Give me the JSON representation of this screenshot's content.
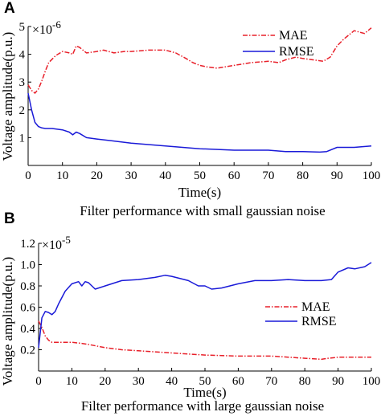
{
  "chart_data": [
    {
      "panel_label": "A",
      "type": "line",
      "caption": "Filter performance with small gaussian noise",
      "xlabel": "Time(s)",
      "ylabel": "Voltage amplitude(p.u.)",
      "y_multiplier": {
        "base": "×10",
        "exponent": "-6"
      },
      "xlim": [
        0,
        100
      ],
      "ylim": [
        0,
        5
      ],
      "xticks": [
        0,
        10,
        20,
        30,
        40,
        50,
        60,
        70,
        80,
        90,
        100
      ],
      "yticks": [
        1,
        2,
        3,
        4,
        5
      ],
      "ytick_labels": [
        "1",
        "2",
        "3",
        "4",
        "5"
      ],
      "legend_position": "top-right",
      "grid": false,
      "series": [
        {
          "name": "MAE",
          "color": "#e8202a",
          "dash": "dash-dot",
          "x": [
            0,
            1,
            2,
            3,
            4,
            5,
            6,
            8,
            10,
            12,
            13,
            14,
            15,
            17,
            20,
            22,
            25,
            28,
            30,
            35,
            40,
            43,
            46,
            48,
            50,
            52,
            55,
            60,
            65,
            70,
            73,
            75,
            78,
            80,
            83,
            86,
            88,
            90,
            92,
            95,
            98,
            100
          ],
          "y": [
            2.9,
            2.7,
            2.6,
            2.75,
            3.05,
            3.4,
            3.7,
            3.95,
            4.1,
            4.05,
            4.0,
            4.3,
            4.25,
            4.05,
            4.1,
            4.15,
            4.05,
            4.1,
            4.1,
            4.15,
            4.15,
            4.05,
            3.85,
            3.7,
            3.6,
            3.55,
            3.5,
            3.6,
            3.7,
            3.75,
            3.7,
            3.8,
            3.9,
            3.85,
            3.8,
            3.75,
            3.9,
            4.3,
            4.55,
            4.85,
            4.75,
            4.95
          ]
        },
        {
          "name": "RMSE",
          "color": "#1a1ad8",
          "dash": "solid",
          "x": [
            0,
            1,
            2,
            3,
            4,
            5,
            7,
            10,
            12,
            13,
            14,
            15,
            17,
            20,
            25,
            30,
            40,
            50,
            60,
            70,
            75,
            80,
            85,
            87,
            90,
            95,
            100
          ],
          "y": [
            2.6,
            2.0,
            1.55,
            1.4,
            1.35,
            1.33,
            1.33,
            1.28,
            1.2,
            1.1,
            1.2,
            1.15,
            1.0,
            0.95,
            0.88,
            0.8,
            0.7,
            0.6,
            0.55,
            0.55,
            0.5,
            0.5,
            0.48,
            0.5,
            0.65,
            0.65,
            0.7
          ]
        }
      ]
    },
    {
      "panel_label": "B",
      "type": "line",
      "caption": "Filter performance with large gaussian noise",
      "xlabel": "Time(s)",
      "ylabel": "Voltage amplitude(p.u.)",
      "y_multiplier": {
        "base": "×10",
        "exponent": "-5"
      },
      "xlim": [
        0,
        100
      ],
      "ylim": [
        0,
        1.2
      ],
      "xticks": [
        0,
        10,
        20,
        30,
        40,
        50,
        60,
        70,
        80,
        90,
        100
      ],
      "yticks": [
        0.2,
        0.4,
        0.6,
        0.8,
        1.0,
        1.2
      ],
      "ytick_labels": [
        "0.2",
        "0.4",
        "0.6",
        "0.8",
        "1.0",
        "1.2"
      ],
      "legend_position": "center-right",
      "grid": false,
      "series": [
        {
          "name": "MAE",
          "color": "#e8202a",
          "dash": "dash-dot",
          "x": [
            0,
            1,
            2,
            3,
            4,
            5,
            8,
            10,
            13,
            15,
            20,
            25,
            30,
            40,
            50,
            60,
            70,
            80,
            85,
            87,
            90,
            95,
            100
          ],
          "y": [
            0.47,
            0.41,
            0.33,
            0.29,
            0.27,
            0.27,
            0.27,
            0.27,
            0.26,
            0.25,
            0.22,
            0.2,
            0.19,
            0.17,
            0.15,
            0.14,
            0.14,
            0.12,
            0.11,
            0.12,
            0.13,
            0.13,
            0.13
          ]
        },
        {
          "name": "RMSE",
          "color": "#1a1ad8",
          "dash": "solid",
          "x": [
            0,
            1,
            2,
            3,
            4,
            5,
            6,
            8,
            10,
            12,
            13,
            14,
            15,
            17,
            20,
            25,
            30,
            35,
            38,
            40,
            45,
            48,
            50,
            52,
            55,
            60,
            65,
            70,
            75,
            80,
            85,
            88,
            90,
            93,
            95,
            98,
            100
          ],
          "y": [
            0.22,
            0.5,
            0.56,
            0.55,
            0.53,
            0.56,
            0.63,
            0.75,
            0.82,
            0.84,
            0.8,
            0.84,
            0.83,
            0.77,
            0.8,
            0.85,
            0.86,
            0.88,
            0.9,
            0.89,
            0.85,
            0.8,
            0.8,
            0.77,
            0.78,
            0.82,
            0.85,
            0.85,
            0.86,
            0.85,
            0.85,
            0.86,
            0.93,
            0.97,
            0.96,
            0.98,
            1.02
          ]
        }
      ]
    }
  ]
}
